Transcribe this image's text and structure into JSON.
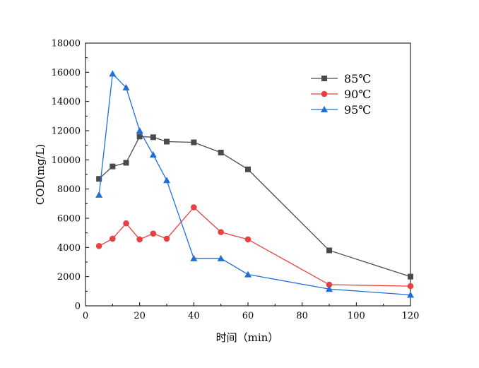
{
  "chart_data": {
    "type": "line",
    "title": "",
    "xlabel": "时间（min）",
    "ylabel": "COD(mg/L)",
    "xlim": [
      0,
      120
    ],
    "ylim": [
      0,
      18000
    ],
    "x_ticks": [
      0,
      20,
      40,
      60,
      80,
      100,
      120
    ],
    "y_ticks": [
      0,
      2000,
      4000,
      6000,
      8000,
      10000,
      12000,
      14000,
      16000,
      18000
    ],
    "grid": false,
    "legend_position": "top-right",
    "series": [
      {
        "name": "85℃",
        "color": "#4a4a4a",
        "marker": "square",
        "x": [
          5,
          10,
          15,
          20,
          25,
          30,
          40,
          50,
          60,
          90,
          120
        ],
        "values": [
          8700,
          9550,
          9800,
          11600,
          11550,
          11250,
          11200,
          10500,
          9350,
          3800,
          2000
        ]
      },
      {
        "name": "90℃",
        "color": "#e8403f",
        "marker": "circle",
        "x": [
          5,
          10,
          15,
          20,
          25,
          30,
          40,
          50,
          60,
          90,
          120
        ],
        "values": [
          4100,
          4600,
          5650,
          4550,
          4950,
          4600,
          6750,
          5050,
          4550,
          1450,
          1350
        ]
      },
      {
        "name": "95℃",
        "color": "#1f6fd6",
        "marker": "triangle",
        "x": [
          5,
          10,
          15,
          20,
          25,
          30,
          40,
          50,
          60,
          90,
          120
        ],
        "values": [
          7600,
          15900,
          14950,
          12000,
          10350,
          8600,
          3250,
          3250,
          2150,
          1150,
          750
        ]
      }
    ]
  }
}
